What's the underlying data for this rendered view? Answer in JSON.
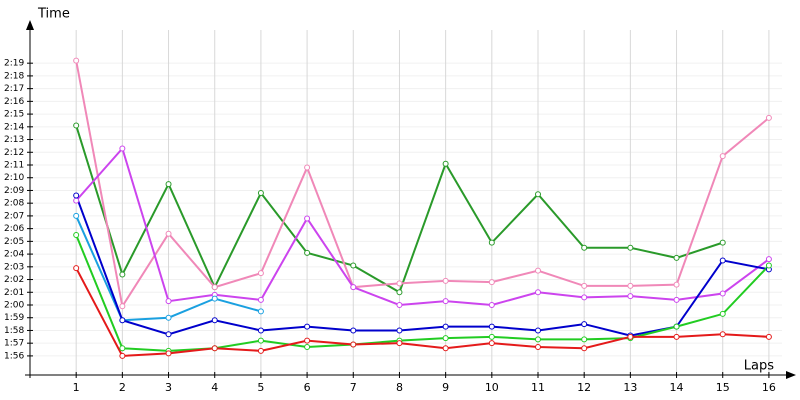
{
  "chart_data": {
    "type": "line",
    "x_label": "Laps",
    "y_label": "Time",
    "x": [
      1,
      2,
      3,
      4,
      5,
      6,
      7,
      8,
      9,
      10,
      11,
      12,
      13,
      14,
      15,
      16
    ],
    "xlim": [
      0,
      16.5
    ],
    "xticks": [
      1,
      2,
      3,
      4,
      5,
      6,
      7,
      8,
      9,
      10,
      11,
      12,
      13,
      14,
      15,
      16
    ],
    "ylim": [
      114.5,
      142
    ],
    "yticks": [
      {
        "value": 116,
        "label": "1:56"
      },
      {
        "value": 117,
        "label": "1:57"
      },
      {
        "value": 118,
        "label": "1:58"
      },
      {
        "value": 119,
        "label": "1:59"
      },
      {
        "value": 120,
        "label": "2:00"
      },
      {
        "value": 121,
        "label": "2:01"
      },
      {
        "value": 122,
        "label": "2:02"
      },
      {
        "value": 123,
        "label": "2:03"
      },
      {
        "value": 124,
        "label": "2:04"
      },
      {
        "value": 125,
        "label": "2:05"
      },
      {
        "value": 126,
        "label": "2:06"
      },
      {
        "value": 127,
        "label": "2:07"
      },
      {
        "value": 128,
        "label": "2:08"
      },
      {
        "value": 129,
        "label": "2:09"
      },
      {
        "value": 130,
        "label": "2:10"
      },
      {
        "value": 131,
        "label": "2:11"
      },
      {
        "value": 132,
        "label": "2:12"
      },
      {
        "value": 133,
        "label": "2:13"
      },
      {
        "value": 134,
        "label": "2:14"
      },
      {
        "value": 135,
        "label": "2:15"
      },
      {
        "value": 136,
        "label": "2:16"
      },
      {
        "value": 137,
        "label": "2:17"
      },
      {
        "value": 138,
        "label": "2:18"
      },
      {
        "value": 139,
        "label": "2:19"
      }
    ],
    "grid": true,
    "series": [
      {
        "color": "#2a9a2a",
        "values": [
          134.1,
          122.4,
          129.5,
          121.4,
          128.8,
          124.1,
          123.1,
          121.0,
          131.1,
          124.9,
          128.7,
          124.5,
          124.5,
          123.7,
          124.9,
          null
        ]
      },
      {
        "color": "#f088b8",
        "values": [
          139.2,
          119.9,
          125.6,
          121.4,
          122.5,
          130.8,
          121.4,
          121.7,
          121.9,
          121.8,
          122.7,
          121.5,
          121.5,
          121.6,
          131.7,
          134.7
        ]
      },
      {
        "color": "#cc44ee",
        "values": [
          128.2,
          132.3,
          120.3,
          120.8,
          120.4,
          126.8,
          121.4,
          120.0,
          120.3,
          120.0,
          121.0,
          120.6,
          120.7,
          120.4,
          120.9,
          123.6
        ]
      },
      {
        "color": "#1aa0e0",
        "values": [
          127.0,
          118.8,
          119.0,
          120.5,
          119.5,
          null,
          null,
          null,
          null,
          null,
          null,
          null,
          null,
          null,
          null,
          null
        ]
      },
      {
        "color": "#0000cc",
        "values": [
          128.6,
          118.8,
          117.7,
          118.8,
          118.0,
          118.3,
          118.0,
          118.0,
          118.3,
          118.3,
          118.0,
          118.5,
          117.6,
          118.3,
          123.5,
          122.8
        ]
      },
      {
        "color": "#22cc22",
        "values": [
          125.5,
          116.6,
          116.4,
          116.6,
          117.2,
          116.7,
          116.9,
          117.2,
          117.4,
          117.5,
          117.3,
          117.3,
          117.4,
          118.3,
          119.3,
          123.1
        ]
      },
      {
        "color": "#e41a1a",
        "values": [
          122.9,
          116.0,
          116.2,
          116.6,
          116.4,
          117.2,
          116.9,
          117.0,
          116.6,
          117.0,
          116.7,
          116.6,
          117.5,
          117.5,
          117.7,
          117.5
        ]
      }
    ]
  }
}
